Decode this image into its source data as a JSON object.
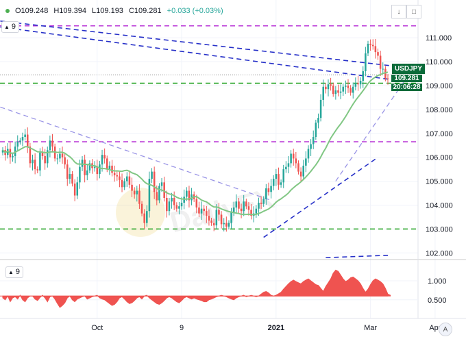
{
  "legend": {
    "open": "O109.248",
    "high": "H109.394",
    "low": "L109.193",
    "close": "C109.281",
    "change": "+0.033 (+0.03%)"
  },
  "main_indicator_count": "9",
  "sub_indicator_count": "9",
  "symbol": "USDJPY",
  "last_price": "109.281",
  "countdown": "20:06:28",
  "scale_label": "A",
  "watermark": "DailyFX",
  "colors": {
    "up": "#26a69a",
    "down": "#ef5350",
    "ma": "#81c784",
    "green_level": "#1ea01e",
    "purple_level": "#b833d6",
    "blue_trend": "#2630c8",
    "light_trend": "#9a95e6",
    "oscillator": "#ef5350",
    "tag": "#0b6b3a"
  },
  "chart_data": [
    {
      "type": "candlestick",
      "symbol": "USDJPY",
      "interval": "daily",
      "y_axis": {
        "ticks": [
          111.0,
          110.0,
          109.0,
          108.0,
          107.0,
          106.0,
          105.0,
          104.0,
          103.0,
          102.0
        ],
        "tick_labels": [
          "111.000",
          "110.000",
          "109.000",
          "108.000",
          "107.000",
          "106.000",
          "105.000",
          "104.000",
          "103.000",
          "102.000"
        ],
        "ylim": [
          101.75,
          111.95
        ]
      },
      "x_axis": {
        "tick_labels": [
          "Oct",
          "9",
          "2021",
          "Mar",
          "Apr"
        ],
        "tick_positions_index": [
          38,
          72,
          110,
          148,
          174
        ]
      },
      "closes": [
        106.3,
        106.1,
        106.35,
        106.0,
        106.05,
        106.45,
        106.65,
        106.7,
        106.85,
        106.95,
        106.45,
        105.75,
        105.9,
        105.5,
        105.45,
        106.2,
        106.05,
        105.75,
        106.3,
        106.7,
        106.45,
        105.95,
        105.95,
        106.15,
        106.0,
        105.7,
        105.1,
        105.3,
        104.9,
        104.4,
        104.95,
        105.6,
        105.9,
        105.25,
        105.45,
        105.75,
        105.55,
        105.6,
        105.3,
        105.7,
        106.1,
        105.95,
        105.5,
        105.65,
        105.35,
        105.25,
        105.2,
        105.05,
        104.75,
        105.0,
        105.2,
        104.85,
        104.6,
        104.45,
        104.6,
        104.05,
        103.65,
        103.25,
        103.75,
        105.1,
        105.4,
        104.55,
        104.2,
        104.8,
        104.95,
        104.3,
        103.75,
        104.15,
        104.3,
        104.0,
        103.85,
        103.95,
        104.1,
        104.35,
        104.6,
        104.2,
        104.45,
        104.25,
        103.9,
        103.65,
        103.85,
        103.75,
        103.55,
        103.35,
        103.25,
        103.15,
        103.8,
        103.6,
        103.2,
        103.25,
        103.1,
        103.25,
        103.7,
        103.9,
        104.15,
        103.85,
        103.75,
        104.15,
        103.95,
        103.8,
        103.55,
        103.65,
        103.85,
        104.1,
        104.05,
        104.25,
        104.7,
        104.55,
        104.8,
        105.1,
        105.3,
        104.85,
        104.95,
        105.5,
        105.6,
        105.75,
        106.15,
        105.95,
        105.75,
        105.4,
        105.2,
        105.65,
        105.95,
        106.35,
        106.55,
        106.85,
        107.45,
        107.65,
        108.4,
        108.95,
        108.85,
        109.05,
        109.0,
        108.65,
        108.8,
        108.7,
        108.75,
        108.95,
        109.0,
        108.9,
        108.7,
        108.95,
        109.1,
        109.05,
        109.2,
        109.6,
        110.35,
        110.75,
        110.7,
        110.65,
        110.4,
        110.25,
        109.7,
        109.7,
        109.3,
        109.28
      ],
      "series": [
        {
          "name": "",
          "kind": "moving-average"
        },
        {
          "name": "",
          "kind": "oscillator"
        }
      ],
      "levels": [
        {
          "price": 111.5,
          "style": "dashed",
          "color": "purple"
        },
        {
          "price": 106.65,
          "style": "dashed",
          "color": "purple"
        },
        {
          "price": 109.1,
          "style": "dashed",
          "color": "green"
        },
        {
          "price": 103.0,
          "style": "dashed",
          "color": "green"
        }
      ]
    },
    {
      "type": "area",
      "yaxis_ticks": [
        "1.000",
        "0.500"
      ],
      "values": [
        0.55,
        0.5,
        0.6,
        0.45,
        0.55,
        0.58,
        0.52,
        0.62,
        0.5,
        0.45,
        0.55,
        0.6,
        0.6,
        0.52,
        0.48,
        0.56,
        0.62,
        0.55,
        0.45,
        0.58,
        0.6,
        0.52,
        0.4,
        0.3,
        0.35,
        0.42,
        0.55,
        0.6,
        0.5,
        0.45,
        0.52,
        0.55,
        0.58,
        0.6,
        0.52,
        0.55,
        0.58,
        0.6,
        0.62,
        0.55,
        0.52,
        0.5,
        0.45,
        0.4,
        0.35,
        0.38,
        0.45,
        0.55,
        0.58,
        0.52,
        0.45,
        0.4,
        0.42,
        0.48,
        0.55,
        0.58,
        0.52,
        0.6,
        0.62,
        0.55,
        0.5,
        0.45,
        0.4,
        0.38,
        0.42,
        0.48,
        0.55,
        0.58,
        0.55,
        0.5,
        0.45,
        0.42,
        0.48,
        0.55,
        0.58,
        0.55,
        0.52,
        0.55,
        0.52,
        0.5,
        0.48,
        0.45,
        0.45,
        0.5,
        0.52,
        0.55,
        0.58,
        0.6,
        0.62,
        0.6,
        0.58,
        0.55,
        0.52,
        0.5,
        0.55,
        0.58,
        0.6,
        0.62,
        0.58,
        0.6,
        0.62,
        0.6,
        0.58,
        0.6,
        0.65,
        0.7,
        0.72,
        0.68,
        0.62,
        0.6,
        0.62,
        0.66,
        0.7,
        0.78,
        0.85,
        0.92,
        0.98,
        1.02,
        0.98,
        0.95,
        0.92,
        0.98,
        1.02,
        1.05,
        1.0,
        0.95,
        0.9,
        0.88,
        0.8,
        0.72,
        0.85,
        0.95,
        1.05,
        1.2,
        1.28,
        1.25,
        1.15,
        1.05,
        0.98,
        1.02,
        1.08,
        1.1,
        1.05,
        1.0,
        0.92,
        0.8,
        0.7,
        0.78,
        0.9,
        1.0,
        1.05,
        1.02,
        0.98,
        0.92,
        0.8,
        0.65,
        0.62
      ]
    }
  ]
}
